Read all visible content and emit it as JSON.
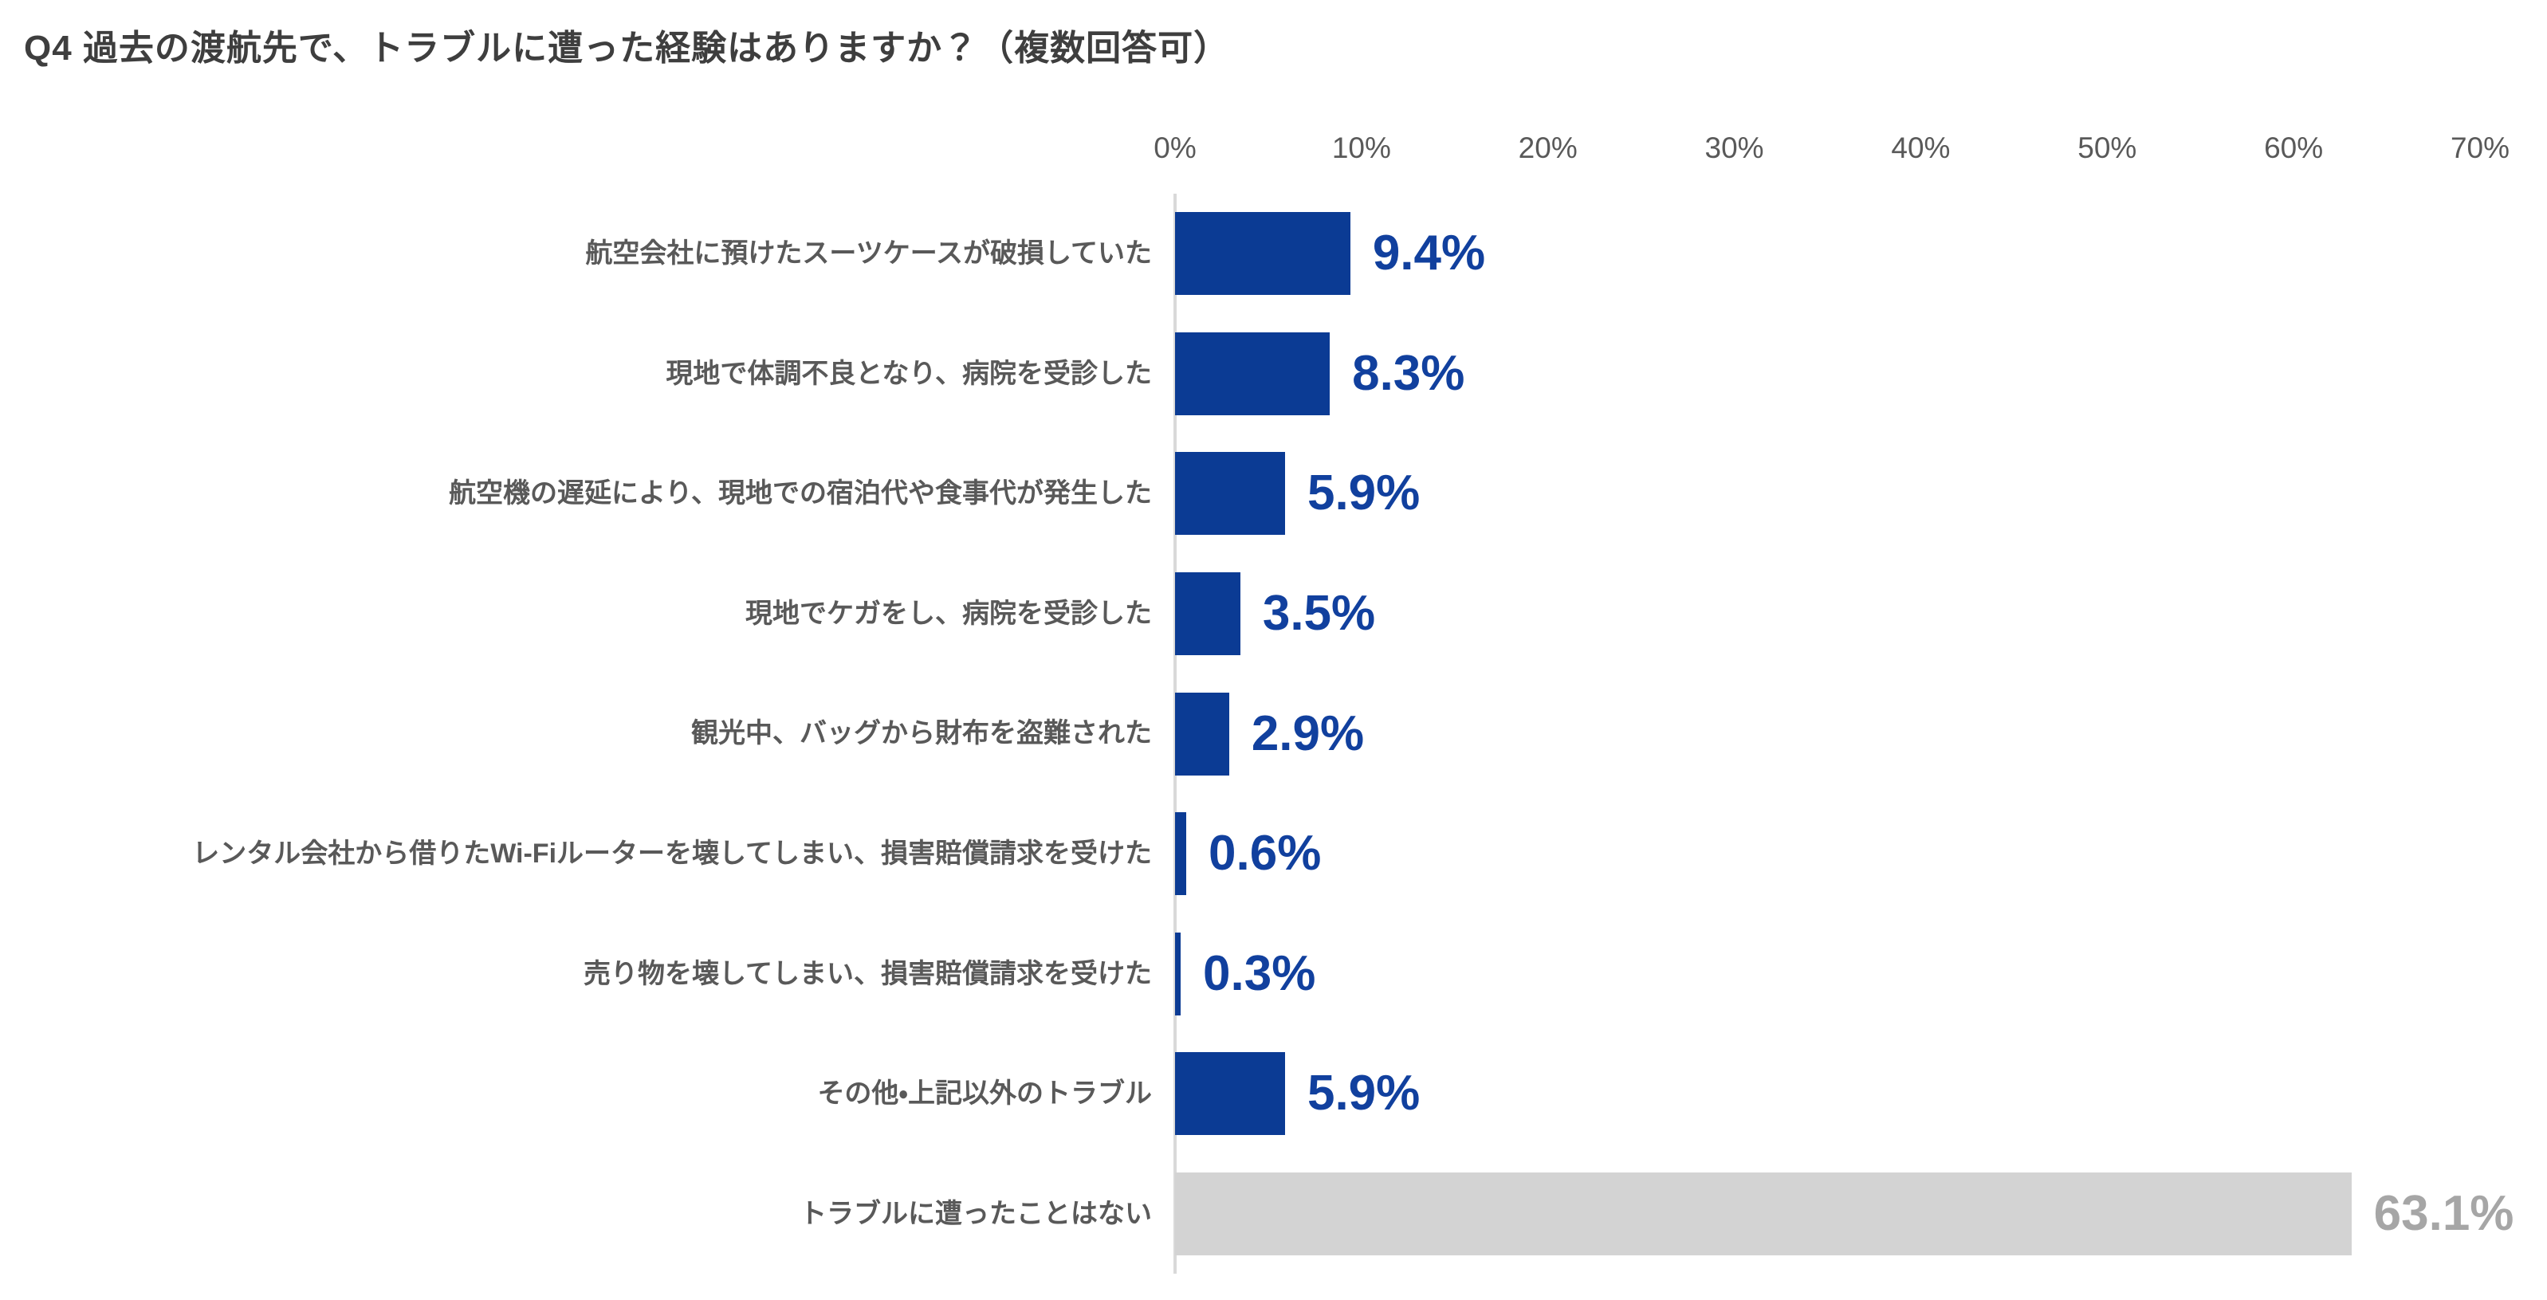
{
  "chart_data": {
    "type": "bar",
    "orientation": "horizontal",
    "title": "Q4 過去の渡航先で、トラブルに遭った経験はありますか？（複数回答可）",
    "categories": [
      "航空会社に預けたスーツケースが破損していた",
      "現地で体調不良となり、病院を受診した",
      "航空機の遅延により、現地での宿泊代や食事代が発生した",
      "現地でケガをし、病院を受診した",
      "観光中、バッグから財布を盗難された",
      "レンタル会社から借りたWi-Fiルーターを壊してしまい、損害賠償請求を受けた",
      "売り物を壊してしまい、損害賠償請求を受けた",
      "その他・上記以外のトラブル",
      "トラブルに遭ったことはない"
    ],
    "values": [
      9.4,
      8.3,
      5.9,
      3.5,
      2.9,
      0.6,
      0.3,
      5.9,
      63.1
    ],
    "value_labels": [
      "9.4%",
      "8.3%",
      "5.9%",
      "3.5%",
      "2.9%",
      "0.6%",
      "0.3%",
      "5.9%",
      "63.1%"
    ],
    "bar_colors": [
      "#0b3b94",
      "#0b3b94",
      "#0b3b94",
      "#0b3b94",
      "#0b3b94",
      "#0b3b94",
      "#0b3b94",
      "#0b3b94",
      "#d3d3d3"
    ],
    "value_colors": [
      "#11409e",
      "#11409e",
      "#11409e",
      "#11409e",
      "#11409e",
      "#11409e",
      "#11409e",
      "#11409e",
      "#a6a6a6"
    ],
    "xlabel": "",
    "ylabel": "",
    "xlim": [
      0,
      70
    ],
    "ticks": [
      "0%",
      "10%",
      "20%",
      "30%",
      "40%",
      "50%",
      "60%",
      "70%"
    ],
    "grid": "off",
    "legend": "none"
  },
  "colors": {
    "accent_blue": "#0b3b94",
    "bar_gray": "#d3d3d3",
    "value_gray": "#a6a6a6",
    "label_gray": "#595959",
    "title_gray": "#3e3e3e",
    "axis_line": "#d9d9d9"
  }
}
